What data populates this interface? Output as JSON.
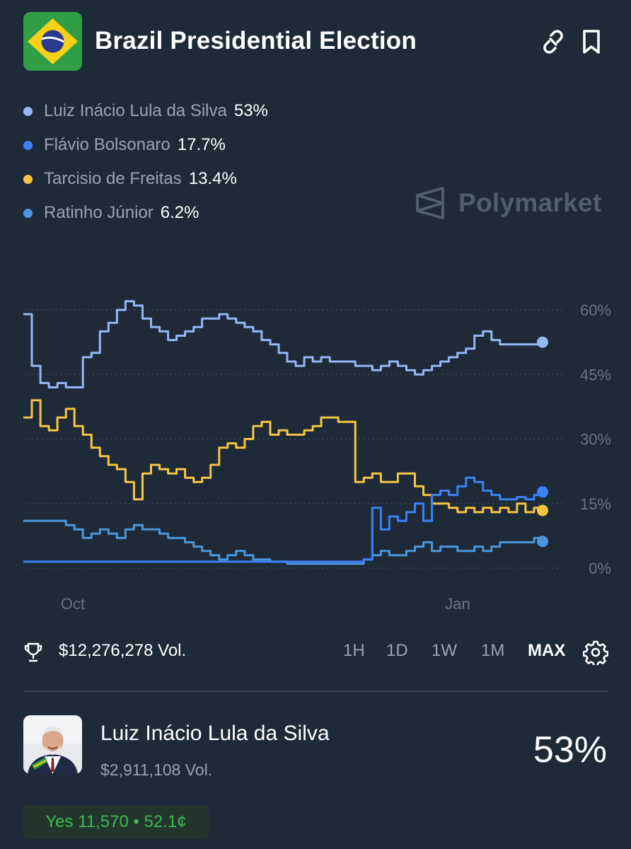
{
  "header": {
    "title": "Brazil Presidential Election",
    "flag_icon": "brazil-flag-icon",
    "link_icon": "link-icon",
    "bookmark_icon": "bookmark-icon"
  },
  "legend": [
    {
      "name": "Luiz Inácio Lula da Silva",
      "pct": "53%",
      "color": "#93b8f5"
    },
    {
      "name": "Flávio Bolsonaro",
      "pct": "17.7%",
      "color": "#3b82f6"
    },
    {
      "name": "Tarcisio de Freitas",
      "pct": "13.4%",
      "color": "#f5c542"
    },
    {
      "name": "Ratinho Júnior",
      "pct": "6.2%",
      "color": "#4b96dc"
    }
  ],
  "watermark": {
    "text": "Polymarket",
    "icon": "polymarket-logo-icon"
  },
  "chart_data": {
    "type": "line",
    "x_ticks": [
      "Oct",
      "Jan"
    ],
    "y_ticks": [
      "60%",
      "45%",
      "30%",
      "15%",
      "0%"
    ],
    "ylim": [
      0,
      60
    ],
    "grid": "horizontal dotted",
    "legend_placement": "top-left",
    "series": [
      {
        "name": "Luiz Inácio Lula da Silva",
        "color": "#93b8f5",
        "end_value": 52.5,
        "values": [
          59,
          47,
          43,
          42,
          43,
          42,
          42,
          49,
          50,
          55,
          57,
          60,
          62,
          61,
          58,
          56,
          55,
          53,
          54,
          55,
          56,
          58,
          58,
          59,
          58,
          57,
          56,
          55,
          53,
          52,
          50,
          48,
          47,
          49,
          48,
          49,
          48,
          48,
          48,
          47,
          47,
          46,
          47,
          48,
          47,
          46,
          45,
          46,
          47,
          48,
          49,
          50,
          51,
          54,
          55,
          53,
          52,
          52,
          52,
          52,
          52,
          52.5
        ]
      },
      {
        "name": "Flávio Bolsonaro",
        "color": "#3b82f6",
        "end_value": 17.7,
        "values": [
          1.5,
          1.5,
          1.5,
          1.5,
          1.5,
          1.5,
          1.5,
          1.5,
          1.5,
          1.5,
          1.5,
          1.5,
          1.5,
          1.5,
          1.5,
          1.5,
          1.5,
          1.5,
          1.5,
          1.5,
          1.5,
          1.5,
          1.5,
          1.5,
          1.5,
          1.5,
          1.5,
          1.5,
          1.5,
          1.5,
          1.5,
          1.5,
          1.5,
          1.5,
          1.5,
          1.5,
          1.5,
          1.5,
          1.5,
          1.5,
          2,
          14,
          9,
          12,
          11,
          13,
          15,
          11,
          17,
          18,
          17,
          19,
          21,
          20,
          18,
          17,
          16,
          16,
          16.5,
          16,
          17,
          17.7
        ]
      },
      {
        "name": "Tarcisio de Freitas",
        "color": "#f5c542",
        "end_value": 13.4,
        "values": [
          35,
          39,
          33,
          32,
          35,
          37,
          33,
          31,
          28,
          26,
          24,
          23,
          20,
          16,
          22,
          24,
          23,
          22,
          23,
          21,
          20,
          21,
          24,
          28,
          29,
          28,
          30,
          33,
          34,
          31,
          32,
          31,
          31,
          32,
          33,
          35,
          35,
          34,
          34,
          20,
          21,
          22,
          20,
          20,
          22,
          22,
          19,
          17,
          15,
          15,
          14,
          13,
          14,
          13,
          14,
          13,
          14,
          13,
          15,
          13,
          14,
          13.4
        ]
      },
      {
        "name": "Ratinho Júnior",
        "color": "#4b96dc",
        "end_value": 6.2,
        "values": [
          11,
          11,
          11,
          11,
          11,
          10,
          9,
          7,
          8,
          9,
          8,
          7,
          9,
          10,
          9,
          9,
          8,
          7,
          7,
          6,
          5,
          4,
          3,
          2,
          3,
          4,
          3,
          2,
          2,
          1.5,
          1.5,
          1,
          1,
          1,
          1,
          1,
          1,
          1,
          1,
          1,
          2,
          3,
          4,
          3,
          3,
          4,
          5,
          6,
          4,
          5,
          5,
          4,
          4,
          5,
          4,
          5,
          6,
          6,
          6,
          6,
          7,
          6.2
        ]
      }
    ]
  },
  "volume": {
    "text": "$12,276,278 Vol.",
    "icon": "trophy-icon"
  },
  "ranges": [
    {
      "label": "1H",
      "active": false
    },
    {
      "label": "1D",
      "active": false
    },
    {
      "label": "1W",
      "active": false
    },
    {
      "label": "1M",
      "active": false
    },
    {
      "label": "MAX",
      "active": true
    }
  ],
  "settings_icon": "gear-icon",
  "candidate": {
    "name": "Luiz Inácio Lula da Silva",
    "volume": "$2,911,108 Vol.",
    "pct": "53%",
    "avatar_icon": "candidate-avatar",
    "yes_label": "Yes 11,570 • 52.1¢"
  }
}
